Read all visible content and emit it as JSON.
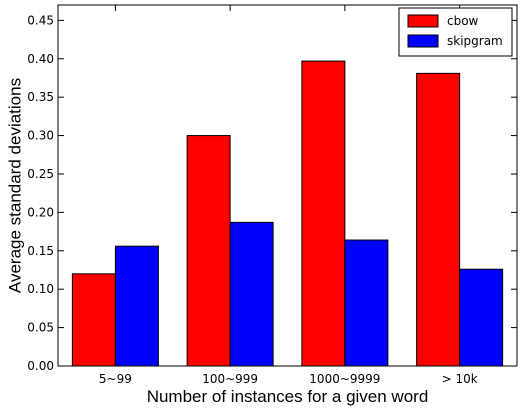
{
  "chart_data": {
    "type": "bar",
    "categories": [
      "5~99",
      "100~999",
      "1000~9999",
      "> 10k"
    ],
    "series": [
      {
        "name": "cbow",
        "color": "#ff0000",
        "values": [
          0.12,
          0.3,
          0.397,
          0.381
        ]
      },
      {
        "name": "skipgram",
        "color": "#0000ff",
        "values": [
          0.156,
          0.187,
          0.164,
          0.126
        ]
      }
    ],
    "title": "",
    "xlabel": "Number of instances for a given word",
    "ylabel": "Average standard deviations",
    "ylim": [
      0,
      0.47
    ],
    "yticks": [
      "0.00",
      "0.05",
      "0.10",
      "0.15",
      "0.20",
      "0.25",
      "0.30",
      "0.35",
      "0.40",
      "0.45"
    ],
    "grid": false,
    "legend_position": "top-right"
  }
}
